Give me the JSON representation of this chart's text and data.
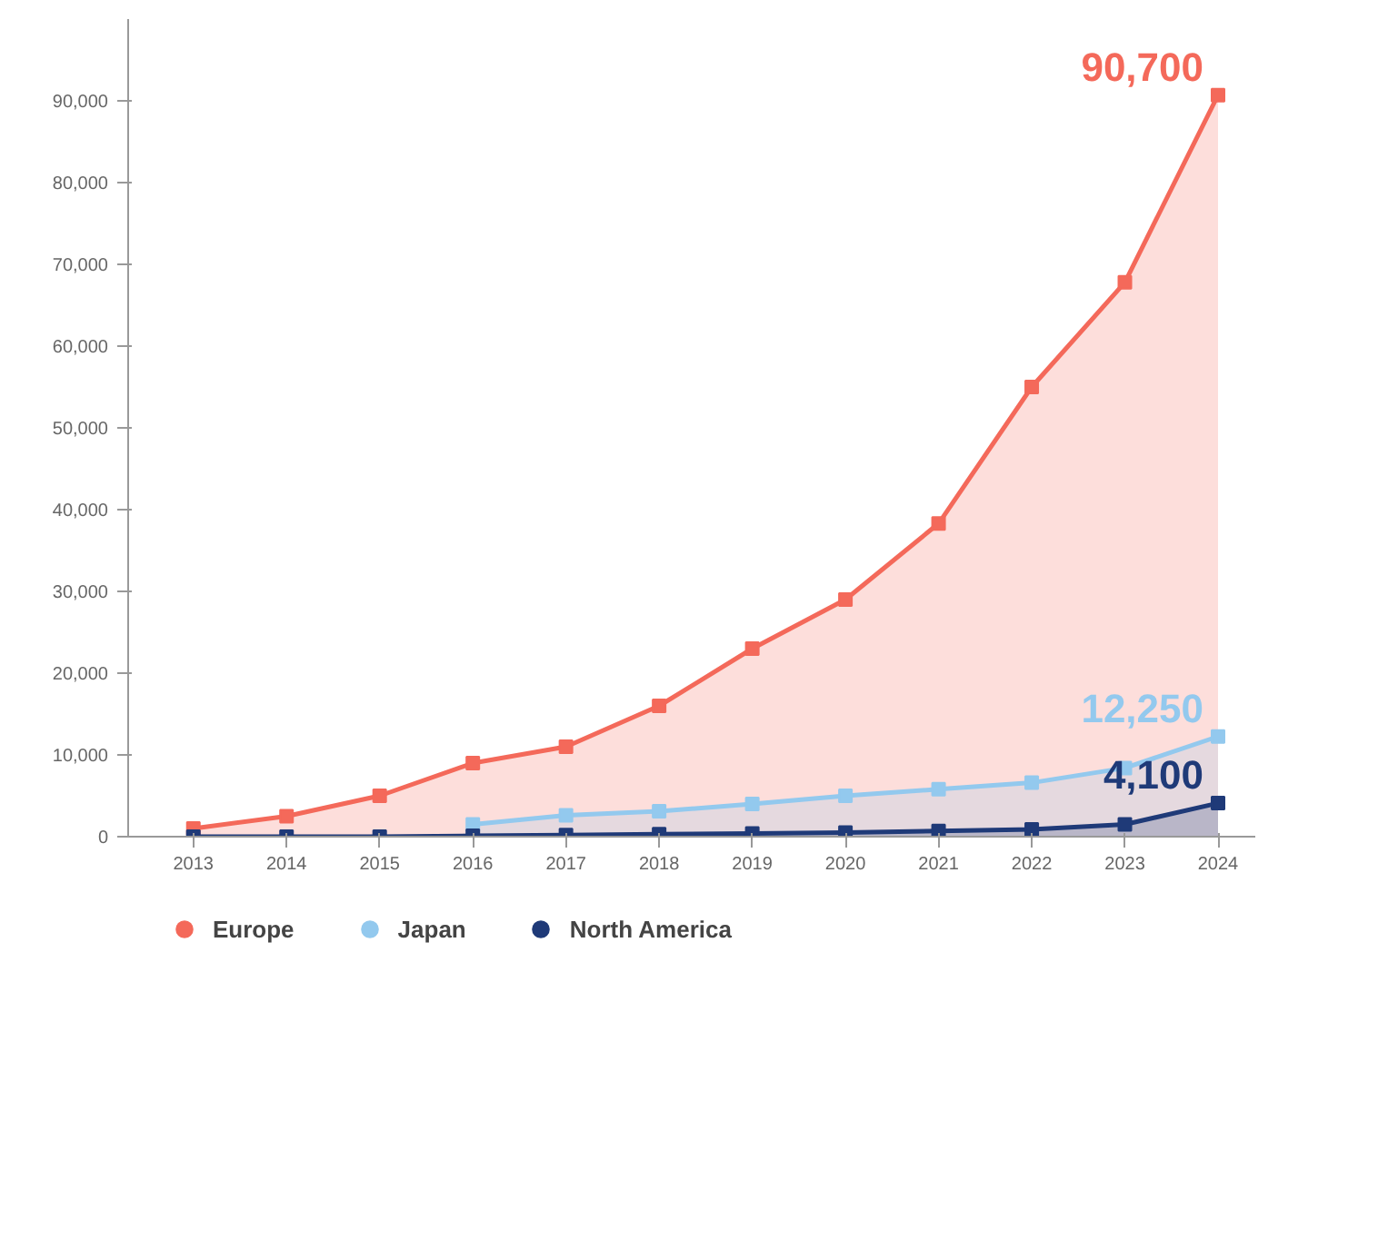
{
  "chart_data": {
    "type": "area",
    "categories": [
      "2013",
      "2014",
      "2015",
      "2016",
      "2017",
      "2018",
      "2019",
      "2020",
      "2021",
      "2022",
      "2023",
      "2024"
    ],
    "series": [
      {
        "name": "Europe",
        "color": "#f4695a",
        "values": [
          1000,
          2500,
          5000,
          9000,
          11000,
          16000,
          23000,
          29000,
          38300,
          55000,
          67800,
          90700
        ],
        "value_labels": [
          null,
          null,
          null,
          null,
          null,
          null,
          null,
          null,
          null,
          null,
          null,
          "90,700"
        ]
      },
      {
        "name": "Japan",
        "color": "#93c9ee",
        "values": [
          null,
          null,
          null,
          1500,
          2600,
          3100,
          4000,
          5000,
          5800,
          6600,
          8400,
          12250
        ],
        "value_labels": [
          null,
          null,
          null,
          null,
          null,
          null,
          null,
          null,
          null,
          null,
          null,
          "12,250"
        ]
      },
      {
        "name": "North America",
        "color": "#1f3a78",
        "values": [
          0,
          0,
          0,
          100,
          200,
          300,
          400,
          500,
          700,
          900,
          1500,
          4100
        ],
        "value_labels": [
          null,
          null,
          null,
          null,
          null,
          null,
          null,
          null,
          null,
          null,
          null,
          "4,100"
        ]
      }
    ],
    "ylim": [
      0,
      100000
    ],
    "yticks": [
      0,
      {
        "value": 10000,
        "label": "10,000"
      },
      {
        "value": 20000,
        "label": "20,000"
      },
      {
        "value": 30000,
        "label": "30,000"
      },
      {
        "value": 40000,
        "label": "40,000"
      },
      {
        "value": 50000,
        "label": "50,000"
      },
      {
        "value": 60000,
        "label": "60,000"
      },
      {
        "value": 70000,
        "label": "70,000"
      },
      {
        "value": 80000,
        "label": "80,000"
      },
      {
        "value": 90000,
        "label": "90,000"
      }
    ],
    "grid": false,
    "legend": "bottom",
    "marker": "square",
    "line_style": "solid"
  }
}
